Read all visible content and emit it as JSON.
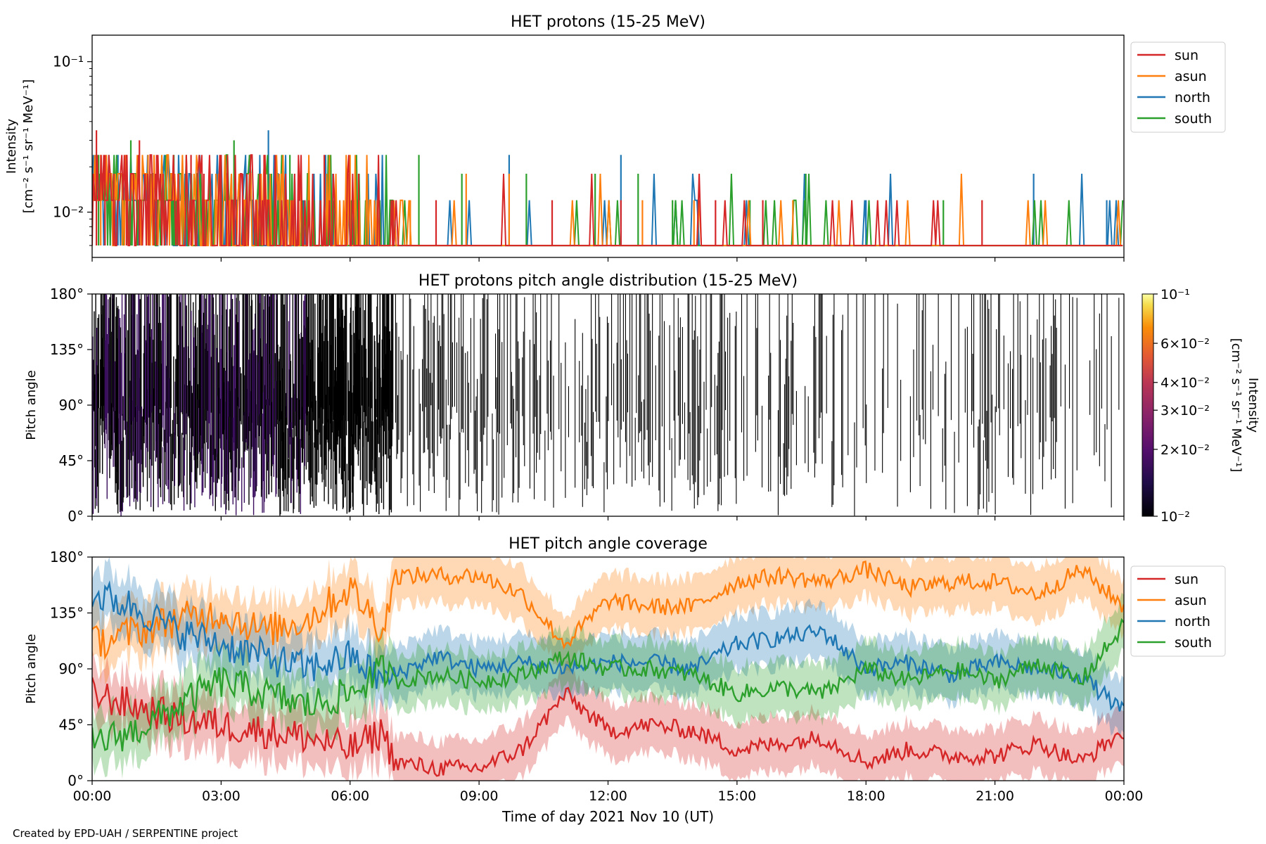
{
  "footer": "Created by EPD-UAH / SERPENTINE project",
  "xlabel": "Time of day 2021 Nov 10 (UT)",
  "xticks": [
    "00:00",
    "03:00",
    "06:00",
    "09:00",
    "12:00",
    "15:00",
    "18:00",
    "21:00",
    "00:00"
  ],
  "colors": {
    "sun": "#d62728",
    "asun": "#ff7f0e",
    "north": "#1f77b4",
    "south": "#2ca02c"
  },
  "chart_data": [
    {
      "type": "line",
      "title": "HET protons (15-25 MeV)",
      "ylabel": "Intensity",
      "ylabel_units": "[cm⁻² s⁻¹ sr⁻¹ MeV⁻¹]",
      "yscale": "log",
      "ylim": [
        0.005,
        0.15
      ],
      "yticks": [
        "10⁻¹",
        "10⁻²"
      ],
      "xlim_hours": [
        0,
        24
      ],
      "legend_position": "outside-right-top",
      "series": [
        {
          "name": "sun",
          "color": "#d62728",
          "spikes": [
            [
              0.1,
              0.035
            ],
            [
              0.3,
              0.024
            ],
            [
              0.5,
              0.018
            ],
            [
              0.8,
              0.024
            ],
            [
              1.1,
              0.03
            ],
            [
              1.5,
              0.024
            ],
            [
              2.0,
              0.018
            ],
            [
              2.3,
              0.024
            ],
            [
              2.6,
              0.018
            ],
            [
              3.0,
              0.024
            ],
            [
              3.5,
              0.018
            ],
            [
              4.0,
              0.024
            ],
            [
              4.8,
              0.018
            ],
            [
              5.4,
              0.024
            ],
            [
              6.2,
              0.018
            ],
            [
              7.0,
              0.012
            ],
            [
              8.0,
              0.012
            ],
            [
              10.7,
              0.012
            ],
            [
              12.3,
              0.012
            ],
            [
              14.5,
              0.012
            ],
            [
              15.6,
              0.012
            ],
            [
              20.7,
              0.012
            ]
          ]
        },
        {
          "name": "asun",
          "color": "#ff7f0e",
          "spikes": [
            [
              0.2,
              0.024
            ],
            [
              0.7,
              0.018
            ],
            [
              1.3,
              0.024
            ],
            [
              2.1,
              0.018
            ],
            [
              3.2,
              0.012
            ],
            [
              4.4,
              0.018
            ],
            [
              6.0,
              0.024
            ],
            [
              7.4,
              0.012
            ],
            [
              8.7,
              0.018
            ],
            [
              9.7,
              0.018
            ],
            [
              12.8,
              0.012
            ],
            [
              14.0,
              0.012
            ],
            [
              16.3,
              0.012
            ]
          ]
        },
        {
          "name": "north",
          "color": "#1f77b4",
          "spikes": [
            [
              0.6,
              0.024
            ],
            [
              1.7,
              0.018
            ],
            [
              2.5,
              0.024
            ],
            [
              4.1,
              0.035
            ],
            [
              5.6,
              0.018
            ],
            [
              9.7,
              0.024
            ],
            [
              12.3,
              0.024
            ],
            [
              14.1,
              0.012
            ],
            [
              18.0,
              0.012
            ],
            [
              21.9,
              0.018
            ],
            [
              23.6,
              0.012
            ]
          ]
        },
        {
          "name": "south",
          "color": "#2ca02c",
          "spikes": [
            [
              0.15,
              0.024
            ],
            [
              0.9,
              0.03
            ],
            [
              1.9,
              0.024
            ],
            [
              3.3,
              0.03
            ],
            [
              4.6,
              0.024
            ],
            [
              7.6,
              0.024
            ],
            [
              8.6,
              0.018
            ],
            [
              10.1,
              0.018
            ],
            [
              11.7,
              0.018
            ],
            [
              12.7,
              0.018
            ],
            [
              13.5,
              0.012
            ],
            [
              15.3,
              0.012
            ],
            [
              16.6,
              0.018
            ],
            [
              19.8,
              0.012
            ]
          ]
        }
      ]
    },
    {
      "type": "heatmap",
      "title": "HET protons pitch angle distribution (15-25 MeV)",
      "ylabel": "Pitch angle",
      "yticks": [
        "0°",
        "45°",
        "90°",
        "135°",
        "180°"
      ],
      "ylim": [
        0,
        180
      ],
      "xlim_hours": [
        0,
        24
      ],
      "colorscale": "inferno",
      "colorbar": {
        "label": "Intensity",
        "units": "[cm⁻² s⁻¹ sr⁻¹ MeV⁻¹]",
        "scale": "log",
        "range": [
          0.01,
          0.1
        ],
        "ticks": [
          {
            "value": 0.1,
            "label": "10⁻¹"
          },
          {
            "value": 0.06,
            "label": "6×10⁻²"
          },
          {
            "value": 0.04,
            "label": "4×10⁻²"
          },
          {
            "value": 0.03,
            "label": "3×10⁻²"
          },
          {
            "value": 0.02,
            "label": "2×10⁻²"
          },
          {
            "value": 0.01,
            "label": "10⁻²"
          }
        ]
      }
    },
    {
      "type": "line",
      "title": "HET pitch angle coverage",
      "ylabel": "Pitch angle",
      "yticks": [
        "0°",
        "45°",
        "90°",
        "135°",
        "180°"
      ],
      "ylim": [
        0,
        180
      ],
      "xlim_hours": [
        0,
        24
      ],
      "legend_position": "outside-right-top",
      "band_halfwidth_deg": 22,
      "series": [
        {
          "name": "sun",
          "color": "#d62728",
          "x": [
            0,
            1,
            2,
            3,
            4,
            5,
            6,
            6.8,
            7,
            8,
            9,
            10,
            11,
            12,
            13,
            14,
            15,
            16,
            17,
            18,
            19,
            20,
            21,
            22,
            23,
            24
          ],
          "y": [
            70,
            60,
            50,
            45,
            40,
            35,
            25,
            40,
            15,
            10,
            10,
            25,
            70,
            40,
            45,
            40,
            25,
            30,
            35,
            15,
            25,
            20,
            20,
            30,
            15,
            40
          ]
        },
        {
          "name": "asun",
          "color": "#ff7f0e",
          "x": [
            0,
            1,
            2,
            3,
            4,
            5,
            6,
            6.8,
            7,
            8,
            9,
            10,
            11,
            12,
            13,
            14,
            15,
            16,
            17,
            18,
            19,
            20,
            21,
            22,
            23,
            24
          ],
          "y": [
            110,
            120,
            130,
            135,
            120,
            130,
            155,
            120,
            165,
            165,
            165,
            150,
            110,
            145,
            140,
            140,
            160,
            165,
            160,
            170,
            155,
            160,
            160,
            150,
            170,
            140
          ]
        },
        {
          "name": "north",
          "color": "#1f77b4",
          "x": [
            0,
            1,
            2,
            3,
            4,
            5,
            6,
            6.8,
            7,
            8,
            9,
            10,
            11,
            12,
            13,
            14,
            15,
            16,
            17,
            18,
            19,
            20,
            21,
            22,
            23,
            24
          ],
          "y": [
            150,
            140,
            120,
            110,
            100,
            90,
            100,
            80,
            85,
            100,
            90,
            95,
            90,
            95,
            95,
            90,
            110,
            115,
            120,
            90,
            95,
            85,
            95,
            90,
            85,
            55
          ]
        },
        {
          "name": "south",
          "color": "#2ca02c",
          "x": [
            0,
            1,
            2,
            3,
            4,
            5,
            6,
            6.8,
            7,
            8,
            9,
            10,
            11,
            12,
            13,
            14,
            15,
            16,
            17,
            18,
            19,
            20,
            21,
            22,
            23,
            24
          ],
          "y": [
            30,
            40,
            60,
            80,
            70,
            60,
            70,
            90,
            80,
            85,
            80,
            85,
            100,
            90,
            90,
            85,
            70,
            75,
            70,
            90,
            80,
            90,
            80,
            95,
            80,
            125
          ]
        }
      ]
    }
  ]
}
